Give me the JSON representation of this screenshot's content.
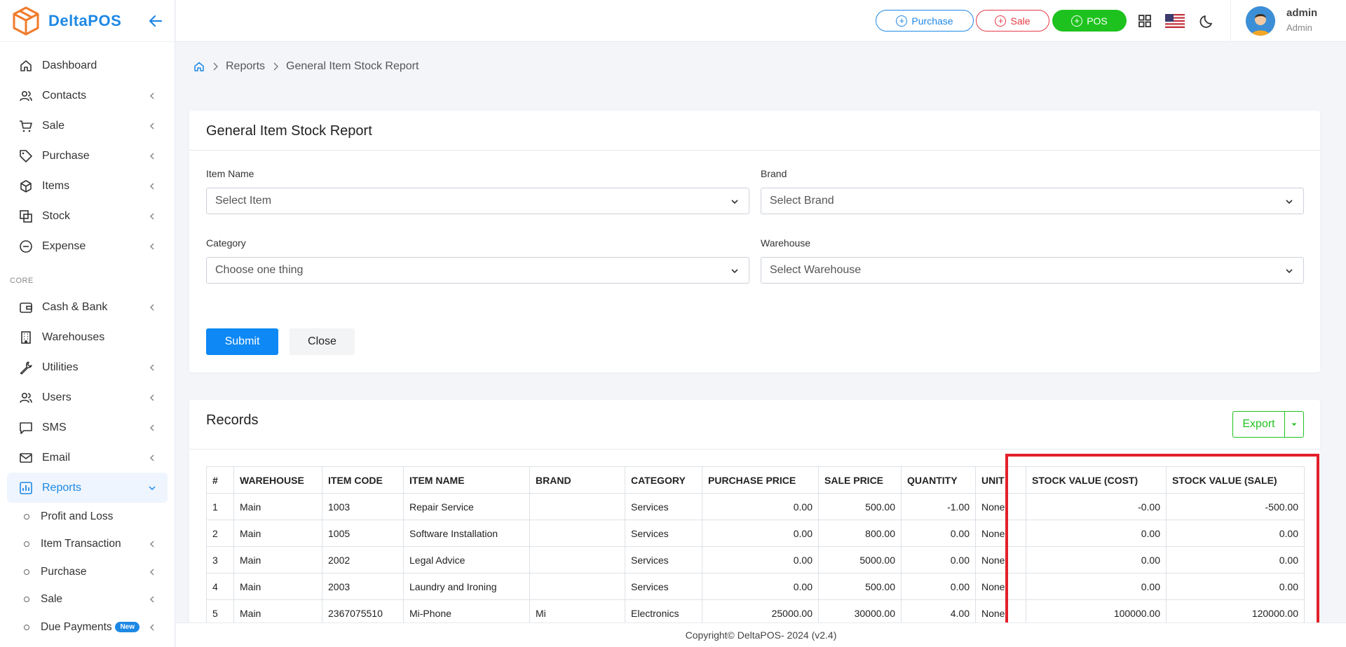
{
  "brand": {
    "name": "DeltaPOS"
  },
  "sidebar": {
    "items": [
      {
        "label": "Dashboard",
        "icon": "home-icon",
        "has_chevron": false
      },
      {
        "label": "Contacts",
        "icon": "users-icon",
        "has_chevron": true
      },
      {
        "label": "Sale",
        "icon": "cart-icon",
        "has_chevron": true
      },
      {
        "label": "Purchase",
        "icon": "tag-icon",
        "has_chevron": true
      },
      {
        "label": "Items",
        "icon": "box-icon",
        "has_chevron": true
      },
      {
        "label": "Stock",
        "icon": "stock-icon",
        "has_chevron": true
      },
      {
        "label": "Expense",
        "icon": "minus-circle-icon",
        "has_chevron": true
      }
    ],
    "section_core": "CORE",
    "core_items": [
      {
        "label": "Cash & Bank",
        "icon": "wallet-icon",
        "has_chevron": true
      },
      {
        "label": "Warehouses",
        "icon": "building-icon",
        "has_chevron": false
      },
      {
        "label": "Utilities",
        "icon": "wrench-icon",
        "has_chevron": true
      },
      {
        "label": "Users",
        "icon": "users-icon",
        "has_chevron": true
      },
      {
        "label": "SMS",
        "icon": "message-icon",
        "has_chevron": true
      },
      {
        "label": "Email",
        "icon": "mail-icon",
        "has_chevron": true
      },
      {
        "label": "Reports",
        "icon": "chart-icon",
        "has_chevron": true,
        "active": true
      }
    ],
    "report_subitems": [
      {
        "label": "Profit and Loss",
        "has_chevron": false
      },
      {
        "label": "Item Transaction",
        "has_chevron": true
      },
      {
        "label": "Purchase",
        "has_chevron": true
      },
      {
        "label": "Sale",
        "has_chevron": true
      },
      {
        "label": "Due Payments",
        "badge": "New",
        "has_chevron": true
      }
    ]
  },
  "topbar": {
    "purchase_label": "Purchase",
    "sale_label": "Sale",
    "pos_label": "POS",
    "user_name": "admin",
    "user_role": "Admin"
  },
  "breadcrumb": {
    "items": [
      "Reports",
      "General Item Stock Report"
    ]
  },
  "filter": {
    "title": "General Item Stock Report",
    "item_label": "Item Name",
    "item_placeholder": "Select Item",
    "brand_label": "Brand",
    "brand_placeholder": "Select Brand",
    "category_label": "Category",
    "category_placeholder": "Choose one thing",
    "warehouse_label": "Warehouse",
    "warehouse_placeholder": "Select Warehouse",
    "submit_label": "Submit",
    "close_label": "Close"
  },
  "records": {
    "title": "Records",
    "export_label": "Export",
    "columns": [
      "#",
      "WAREHOUSE",
      "ITEM CODE",
      "ITEM NAME",
      "BRAND",
      "CATEGORY",
      "PURCHASE PRICE",
      "SALE PRICE",
      "QUANTITY",
      "UNIT",
      "STOCK VALUE (COST)",
      "STOCK VALUE (SALE)"
    ],
    "rows": [
      [
        "1",
        "Main",
        "1003",
        "Repair Service",
        "",
        "Services",
        "0.00",
        "500.00",
        "-1.00",
        "None",
        "-0.00",
        "-500.00"
      ],
      [
        "2",
        "Main",
        "1005",
        "Software Installation",
        "",
        "Services",
        "0.00",
        "800.00",
        "0.00",
        "None",
        "0.00",
        "0.00"
      ],
      [
        "3",
        "Main",
        "2002",
        "Legal Advice",
        "",
        "Services",
        "0.00",
        "5000.00",
        "0.00",
        "None",
        "0.00",
        "0.00"
      ],
      [
        "4",
        "Main",
        "2003",
        "Laundry and Ironing",
        "",
        "Services",
        "0.00",
        "500.00",
        "0.00",
        "None",
        "0.00",
        "0.00"
      ],
      [
        "5",
        "Main",
        "2367075510",
        "Mi-Phone",
        "Mi",
        "Electronics",
        "25000.00",
        "30000.00",
        "4.00",
        "None",
        "100000.00",
        "120000.00"
      ]
    ]
  },
  "footer": {
    "text": "Copyright© DeltaPOS- 2024 (v2.4)"
  },
  "colors": {
    "primary": "#0d88f4",
    "success": "#1ec21e",
    "danger": "#e53946",
    "highlight": "#e2202a"
  }
}
